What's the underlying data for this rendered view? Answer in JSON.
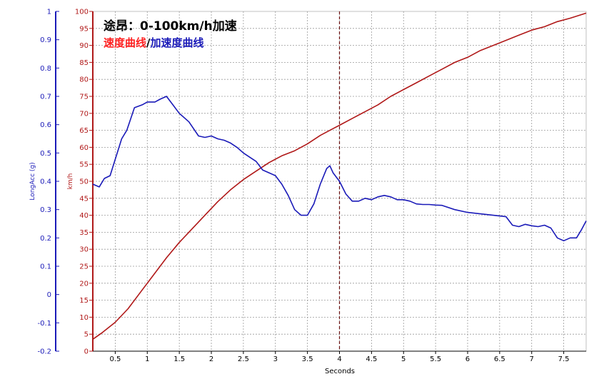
{
  "title": "途昂：0-100km/h加速",
  "subtitle_speed": "速度曲线",
  "subtitle_sep": "/",
  "subtitle_acc": "加速度曲线",
  "colors": {
    "speed": "#b01818",
    "acc": "#1a1ab8",
    "grid": "#9a9a9a",
    "marker": "#6a1010",
    "title": "#000000",
    "subtitle_speed": "#ff2020",
    "subtitle_acc": "#1a1ab8"
  },
  "chart_data": {
    "type": "line",
    "title": "途昂：0-100km/h加速",
    "xlabel": "Seconds",
    "ylabel_left": "LongAcc (g)",
    "ylabel_right": "km/h",
    "xlim": [
      0.15,
      7.85
    ],
    "ylim_speed": [
      0,
      100
    ],
    "ylim_acc": [
      -0.2,
      1
    ],
    "x_ticks": [
      "0.5",
      "1",
      "1.5",
      "2",
      "2.5",
      "3",
      "3.5",
      "4",
      "4.5",
      "5",
      "5.5",
      "6",
      "6.5",
      "7",
      "7.5"
    ],
    "speed_ticks": [
      "0",
      "5",
      "10",
      "15",
      "20",
      "25",
      "30",
      "35",
      "40",
      "45",
      "50",
      "55",
      "60",
      "65",
      "70",
      "75",
      "80",
      "85",
      "90",
      "95",
      "100"
    ],
    "acc_ticks": [
      "-0.2",
      "-0.1",
      "0",
      "0.1",
      "0.2",
      "0.3",
      "0.4",
      "0.5",
      "0.6",
      "0.7",
      "0.8",
      "0.9",
      "1"
    ],
    "grid": true,
    "marker_x": 4.0,
    "series": [
      {
        "name": "速度曲线",
        "axis": "speed",
        "x": [
          0.15,
          0.3,
          0.5,
          0.7,
          0.9,
          1.1,
          1.3,
          1.5,
          1.7,
          1.9,
          2.1,
          2.3,
          2.5,
          2.7,
          2.9,
          3.1,
          3.3,
          3.5,
          3.7,
          3.9,
          4.0,
          4.2,
          4.4,
          4.6,
          4.8,
          5.0,
          5.2,
          5.4,
          5.6,
          5.8,
          6.0,
          6.2,
          6.4,
          6.6,
          6.8,
          7.0,
          7.2,
          7.4,
          7.6,
          7.85
        ],
        "y": [
          3.5,
          5.5,
          8.5,
          12.5,
          17.5,
          22.5,
          27.5,
          32,
          36,
          40,
          44,
          47.5,
          50.5,
          53,
          55.5,
          57.5,
          59,
          61,
          63.5,
          65.5,
          66.5,
          68.5,
          70.5,
          72.5,
          75,
          77,
          79,
          81,
          83,
          85,
          86.5,
          88.5,
          90,
          91.5,
          93,
          94.5,
          95.5,
          97,
          98,
          99.5
        ]
      },
      {
        "name": "加速度曲线",
        "axis": "acc",
        "x": [
          0.15,
          0.25,
          0.33,
          0.42,
          0.6,
          0.68,
          0.8,
          0.92,
          1.0,
          1.12,
          1.2,
          1.3,
          1.4,
          1.5,
          1.65,
          1.8,
          1.9,
          2.0,
          2.1,
          2.2,
          2.3,
          2.4,
          2.5,
          2.6,
          2.7,
          2.8,
          2.9,
          3.0,
          3.1,
          3.2,
          3.3,
          3.4,
          3.5,
          3.6,
          3.7,
          3.8,
          3.85,
          3.9,
          4.0,
          4.1,
          4.2,
          4.3,
          4.4,
          4.5,
          4.6,
          4.7,
          4.8,
          4.9,
          5.0,
          5.1,
          5.2,
          5.3,
          5.4,
          5.5,
          5.6,
          5.8,
          6.0,
          6.2,
          6.4,
          6.6,
          6.7,
          6.8,
          6.9,
          7.0,
          7.1,
          7.2,
          7.3,
          7.4,
          7.5,
          7.6,
          7.7,
          7.78,
          7.85
        ],
        "y": [
          0.39,
          0.38,
          0.41,
          0.42,
          0.55,
          0.58,
          0.66,
          0.67,
          0.68,
          0.68,
          0.69,
          0.7,
          0.67,
          0.64,
          0.61,
          0.56,
          0.555,
          0.56,
          0.55,
          0.545,
          0.535,
          0.52,
          0.5,
          0.485,
          0.47,
          0.44,
          0.43,
          0.42,
          0.39,
          0.35,
          0.3,
          0.28,
          0.28,
          0.32,
          0.39,
          0.445,
          0.455,
          0.43,
          0.4,
          0.355,
          0.33,
          0.33,
          0.34,
          0.335,
          0.345,
          0.35,
          0.345,
          0.335,
          0.335,
          0.33,
          0.32,
          0.318,
          0.318,
          0.316,
          0.315,
          0.3,
          0.29,
          0.285,
          0.28,
          0.275,
          0.245,
          0.24,
          0.248,
          0.243,
          0.24,
          0.245,
          0.235,
          0.2,
          0.19,
          0.2,
          0.2,
          0.23,
          0.26
        ]
      }
    ]
  }
}
